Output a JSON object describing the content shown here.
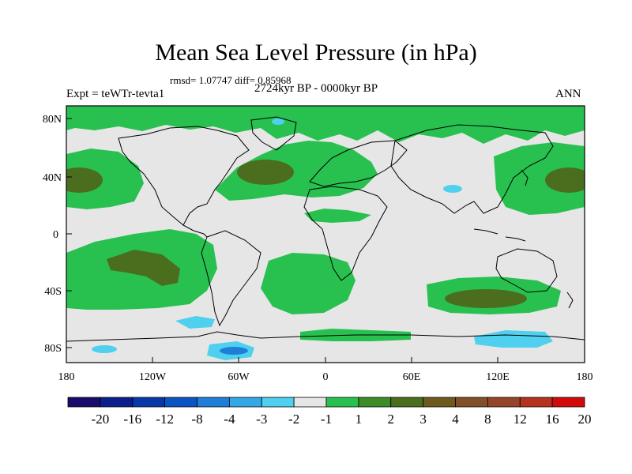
{
  "title": "Mean Sea Level Pressure (in hPa)",
  "stats": "rmsd= 1.07747 diff= 0.85968",
  "experiment": "Expt = teWTr-tevta1",
  "period": "2724kyr BP - 0000kyr BP",
  "season": "ANN",
  "axes": {
    "x_ticks": [
      "180",
      "120W",
      "60W",
      "0",
      "60E",
      "120E",
      "180"
    ],
    "y_ticks": [
      "80N",
      "40N",
      "0",
      "40S",
      "80S"
    ]
  },
  "colorbar": {
    "colors": [
      "#1a0a6b",
      "#0a1f8c",
      "#0837a8",
      "#0a55c4",
      "#1f7fd8",
      "#32a9e6",
      "#4fd0ee",
      "#e6e6e6",
      "#28c150",
      "#3d8c28",
      "#4b6e1e",
      "#6e5a1e",
      "#825028",
      "#964628",
      "#b4321e",
      "#d20a0a"
    ],
    "labels": [
      "-20",
      "-16",
      "-12",
      "-8",
      "-4",
      "-3",
      "-2",
      "-1",
      "1",
      "2",
      "3",
      "4",
      "8",
      "12",
      "16",
      "20"
    ]
  },
  "chart_data": {
    "type": "filled-contour-map",
    "variable": "Mean Sea Level Pressure difference",
    "units": "hPa",
    "title": "Mean Sea Level Pressure (in hPa)",
    "lon_range": [
      -180,
      180
    ],
    "lat_range": [
      -90,
      90
    ],
    "contour_levels": [
      -20,
      -16,
      -12,
      -8,
      -4,
      -3,
      -2,
      -1,
      1,
      2,
      3,
      4,
      8,
      12,
      16,
      20
    ],
    "rmsd": 1.07747,
    "mean_diff": 0.85968
  }
}
